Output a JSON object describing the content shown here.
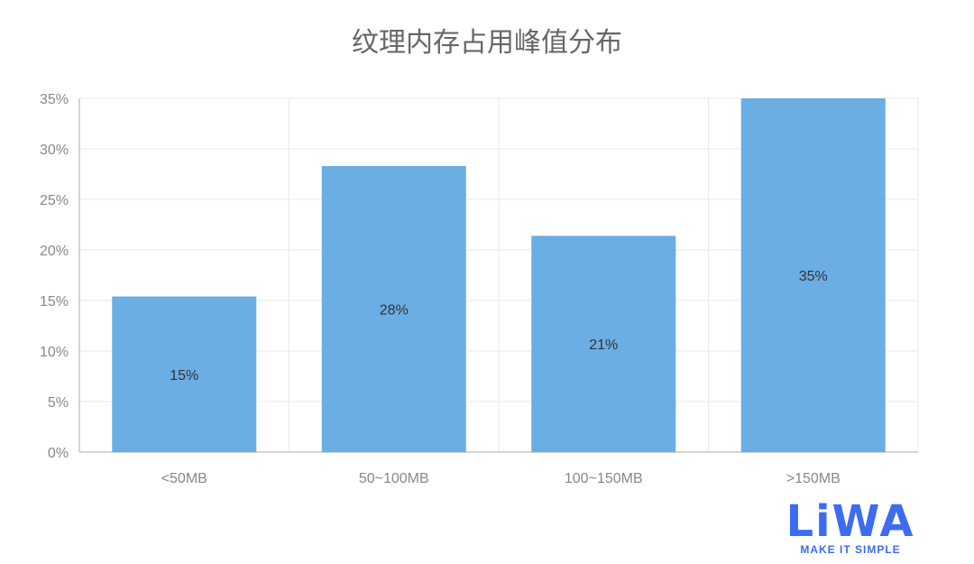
{
  "chart_data": {
    "type": "bar",
    "title": "纹理内存占用峰值分布",
    "categories": [
      "<50MB",
      "50~100MB",
      "100~150MB",
      ">150MB"
    ],
    "values": [
      15.4,
      28.3,
      21.4,
      35.0
    ],
    "data_labels": [
      "15%",
      "28%",
      "21%",
      "35%"
    ],
    "yticks": [
      "0%",
      "5%",
      "10%",
      "15%",
      "20%",
      "25%",
      "30%",
      "35%"
    ],
    "ylim": [
      0,
      35
    ],
    "grid": true,
    "bar_color": "#6aaee3",
    "xlabel": "",
    "ylabel": ""
  },
  "logo": {
    "text": "LiWA",
    "tagline": "MAKE IT SIMPLE",
    "color": "#3d6cf0"
  }
}
